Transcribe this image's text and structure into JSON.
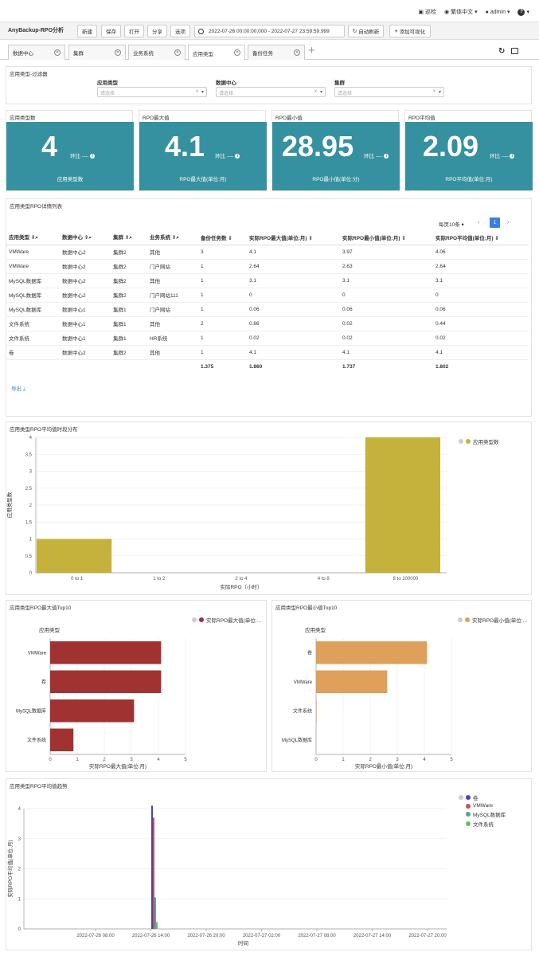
{
  "topbar": {
    "tour": "巡检",
    "language": "繁体中文",
    "user": "admin",
    "help": "?"
  },
  "toolbar": {
    "title": "AnyBackup-RPO分析",
    "new_label": "新建",
    "save_label": "保存",
    "open_label": "打开",
    "share_label": "分享",
    "options_label": "选项",
    "time_range": "2022-07-26 00:00:00.000 - 2022-07-27 23:59:59.999",
    "auto_refresh": "自动刷新",
    "add_visual": "添加可视化"
  },
  "tabs": [
    {
      "label": "数据中心"
    },
    {
      "label": "集群"
    },
    {
      "label": "业务系统"
    },
    {
      "label": "应用类型"
    },
    {
      "label": "备份任务"
    }
  ],
  "filter": {
    "title": "应用类型-过滤器",
    "fields": [
      {
        "label": "应用类型",
        "placeholder": "请选择"
      },
      {
        "label": "数据中心",
        "placeholder": "请选择"
      },
      {
        "label": "集群",
        "placeholder": "请选择"
      }
    ]
  },
  "kpis": [
    {
      "title": "应用类型数",
      "value": "4",
      "compare": "环比 ----",
      "subtitle": "应用类型数"
    },
    {
      "title": "RPO最大值",
      "value": "4.1",
      "compare": "环比 ----",
      "subtitle": "RPO最大值(单位:月)"
    },
    {
      "title": "RPO最小值",
      "value": "28.95",
      "compare": "环比 ----",
      "subtitle": "RPO最小值(单位:分)"
    },
    {
      "title": "RPO平均值",
      "value": "2.09",
      "compare": "环比 ----",
      "subtitle": "RPO平均值(单位:月)"
    }
  ],
  "detail_table": {
    "title": "应用类型RPO详情列表",
    "page_size": "每页10条",
    "current_page": "1",
    "export": "导出",
    "columns": [
      "应用类型",
      "数据中心",
      "集群",
      "业务系统",
      "备份任务数",
      "实际RPO最大值(单位:月)",
      "实际RPO最小值(单位:月)",
      "实际RPO平均值(单位:月)"
    ],
    "rows": [
      [
        "VMWare",
        "数据中心2",
        "集群2",
        "其他",
        "3",
        "4.1",
        "3.97",
        "4.06"
      ],
      [
        "VMWare",
        "数据中心2",
        "集群2",
        "门户网站",
        "1",
        "2.64",
        "2.63",
        "2.64"
      ],
      [
        "MySQL数据库",
        "数据中心2",
        "集群2",
        "其他",
        "1",
        "3.1",
        "3.1",
        "3.1"
      ],
      [
        "MySQL数据库",
        "数据中心2",
        "集群2",
        "门户网站111",
        "1",
        "0",
        "0",
        "0"
      ],
      [
        "MySQL数据库",
        "数据中心1",
        "集群1",
        "门户网站",
        "1",
        "0.06",
        "0.06",
        "0.06"
      ],
      [
        "文件系统",
        "数据中心1",
        "集群1",
        "其他",
        "2",
        "0.86",
        "0.02",
        "0.44"
      ],
      [
        "文件系统",
        "数据中心1",
        "集群1",
        "HR系统",
        "1",
        "0.02",
        "0.02",
        "0.02"
      ],
      [
        "卷",
        "数据中心2",
        "集群2",
        "其他",
        "1",
        "4.1",
        "4.1",
        "4.1"
      ]
    ],
    "totals": [
      "",
      "",
      "",
      "",
      "1.375",
      "1.860",
      "1.737",
      "1.802"
    ]
  },
  "chart_data": [
    {
      "type": "bar",
      "title": "应用类型RPO平均值时段分布",
      "categories": [
        "0 to 1",
        "1 to 2",
        "2 to 4",
        "4 to 8",
        "8 to 100000"
      ],
      "series": [
        {
          "name": "应用类型数",
          "values": [
            1,
            0,
            0,
            0,
            4
          ]
        }
      ],
      "xlabel": "实际RPO（小时）",
      "ylabel": "应用类型数",
      "ylim": [
        0,
        4
      ],
      "yticks": [
        "0",
        "0.5",
        "1",
        "1.5",
        "2",
        "2.5",
        "3",
        "3.5",
        "4"
      ],
      "color": "#c4b23c",
      "legend": "top-right"
    },
    {
      "type": "bar",
      "orientation": "horizontal",
      "title": "应用类型RPO最大值Top10",
      "categories_title": "应用类型",
      "categories": [
        "VMWare",
        "卷",
        "MySQL数据库",
        "文件系统"
      ],
      "series": [
        {
          "name": "实际RPO最大值(单位:...",
          "values": [
            4.1,
            4.1,
            3.1,
            0.86
          ]
        }
      ],
      "xlabel": "实际RPO最大值(单位:月)",
      "xlim": [
        0,
        5
      ],
      "xticks": [
        "0",
        "1",
        "2",
        "3",
        "4",
        "5"
      ],
      "color": "#a03232",
      "legend": "top-right"
    },
    {
      "type": "bar",
      "orientation": "horizontal",
      "title": "应用类型RPO最小值Top10",
      "categories_title": "应用类型",
      "categories": [
        "卷",
        "VMWare",
        "文件系统",
        "MySQL数据库"
      ],
      "series": [
        {
          "name": "实际RPO最小值(单位:...",
          "values": [
            4.1,
            2.63,
            0.02,
            0
          ]
        }
      ],
      "xlabel": "实际RPO最小值(单位:月)",
      "xlim": [
        0,
        5
      ],
      "xticks": [
        "0",
        "1",
        "2",
        "3",
        "4",
        "5"
      ],
      "color": "#dea05a",
      "legend": "top-right"
    },
    {
      "type": "bar",
      "title": "应用类型RPO平均值趋势",
      "x_ticks": [
        "2022-07-26 08:00",
        "2022-07-26 14:00",
        "2022-07-26 20:00",
        "2022-07-27 02:00",
        "2022-07-27 08:00",
        "2022-07-27 14:00",
        "2022-07-27 20:00"
      ],
      "xlabel": "时间",
      "ylabel": "实际RPO平均值(单位:月)",
      "ylim": [
        0,
        4
      ],
      "yticks": [
        "0",
        "1",
        "2",
        "3",
        "4"
      ],
      "bar_time": "2022-07-26 14:00",
      "series": [
        {
          "name": "卷",
          "values": [
            4.1
          ],
          "color": "#3c4ab4"
        },
        {
          "name": "VMWare",
          "values": [
            3.7
          ],
          "color": "#c85050"
        },
        {
          "name": "MySQL数据库",
          "values": [
            1.05
          ],
          "color": "#5aa0a0"
        },
        {
          "name": "文件系统",
          "values": [
            0.23
          ],
          "color": "#5ac85a"
        }
      ],
      "legend": "top-right"
    }
  ]
}
